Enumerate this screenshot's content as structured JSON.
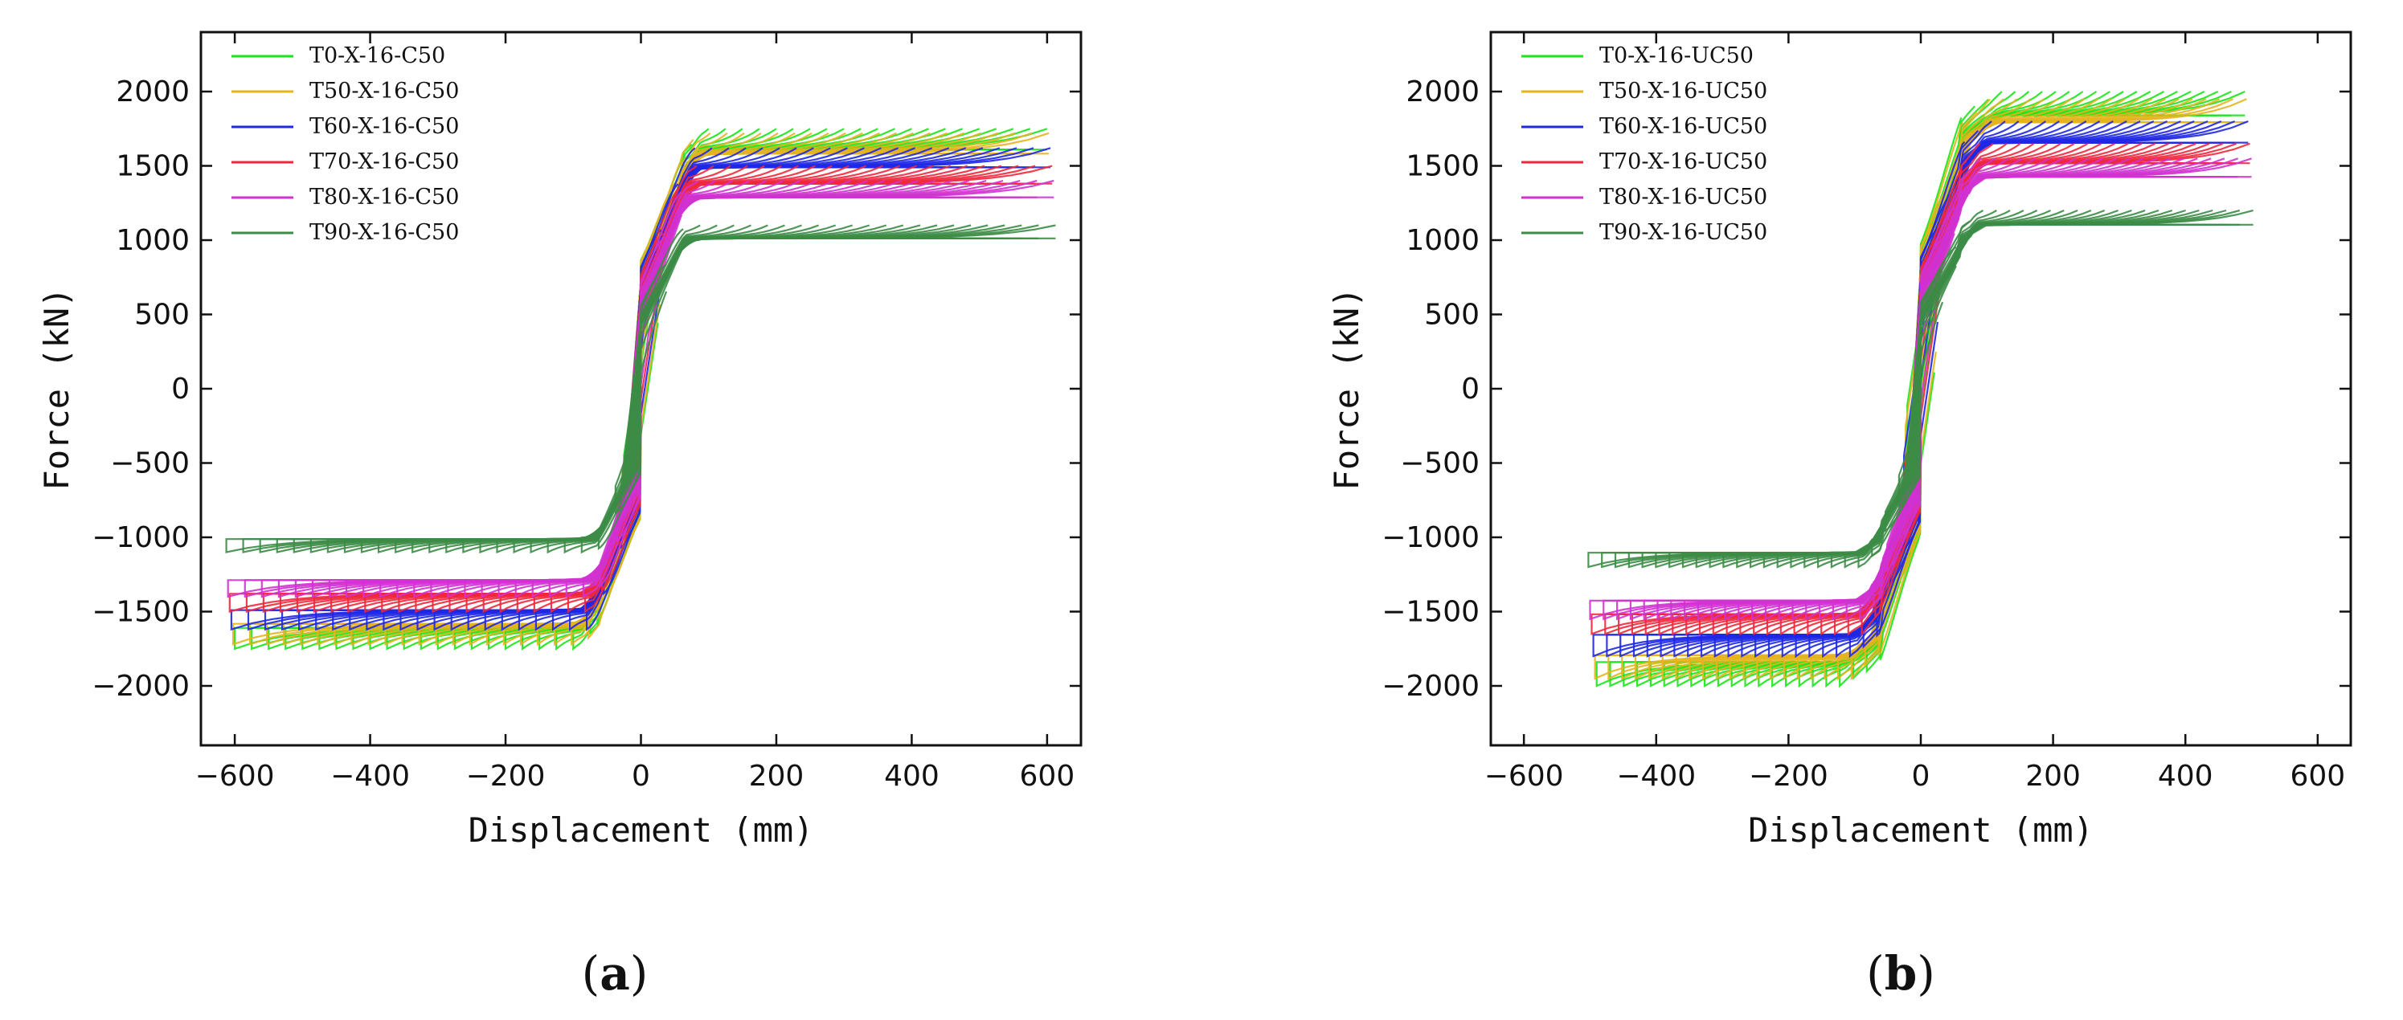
{
  "chart_data": [
    {
      "type": "line",
      "panel_label": "a",
      "xlabel": "Displacement (mm)",
      "ylabel": "Force (kN)",
      "xlim": [
        -650,
        650
      ],
      "ylim": [
        -2400,
        2400
      ],
      "xticks": [
        -600,
        -400,
        -200,
        0,
        200,
        400,
        600
      ],
      "yticks": [
        -2000,
        -1500,
        -1000,
        -500,
        0,
        500,
        1000,
        1500,
        2000
      ],
      "xtick_labels": [
        "−600",
        "−400",
        "−200",
        "0",
        "200",
        "400",
        "600"
      ],
      "ytick_labels": [
        "−2000",
        "−1500",
        "−1000",
        "−500",
        "0",
        "500",
        "1000",
        "1500",
        "2000"
      ],
      "grid": false,
      "legend_position": "top-left",
      "x_max_displacement": 600,
      "series": [
        {
          "name": "T0-X-16-C50",
          "color": "#19e619",
          "peak_force": 1750,
          "end_force": 1330
        },
        {
          "name": "T50-X-16-C50",
          "color": "#e6b41e",
          "peak_force": 1720,
          "end_force": 1250
        },
        {
          "name": "T60-X-16-C50",
          "color": "#1e28e6",
          "peak_force": 1620,
          "end_force": 1150
        },
        {
          "name": "T70-X-16-C50",
          "color": "#f0283c",
          "peak_force": 1500,
          "end_force": 1030
        },
        {
          "name": "T80-X-16-C50",
          "color": "#d232d2",
          "peak_force": 1400,
          "end_force": 960
        },
        {
          "name": "T90-X-16-C50",
          "color": "#3c8c46",
          "peak_force": 1100,
          "end_force": 900
        }
      ]
    },
    {
      "type": "line",
      "panel_label": "b",
      "xlabel": "Displacement (mm)",
      "ylabel": "Force (kN)",
      "xlim": [
        -650,
        650
      ],
      "ylim": [
        -2400,
        2400
      ],
      "xticks": [
        -600,
        -400,
        -200,
        0,
        200,
        400,
        600
      ],
      "yticks": [
        -2000,
        -1500,
        -1000,
        -500,
        0,
        500,
        1000,
        1500,
        2000
      ],
      "xtick_labels": [
        "−600",
        "−400",
        "−200",
        "0",
        "200",
        "400",
        "600"
      ],
      "ytick_labels": [
        "−2000",
        "−1500",
        "−1000",
        "−500",
        "0",
        "500",
        "1000",
        "1500",
        "2000"
      ],
      "grid": false,
      "legend_position": "top-left",
      "x_max_displacement": 490,
      "series": [
        {
          "name": "T0-X-16-UC50",
          "color": "#19e619",
          "peak_force": 2000,
          "end_force": 1580
        },
        {
          "name": "T50-X-16-UC50",
          "color": "#e6b41e",
          "peak_force": 1950,
          "end_force": 1500
        },
        {
          "name": "T60-X-16-UC50",
          "color": "#1e28e6",
          "peak_force": 1800,
          "end_force": 1400
        },
        {
          "name": "T70-X-16-UC50",
          "color": "#f0283c",
          "peak_force": 1650,
          "end_force": 1300
        },
        {
          "name": "T80-X-16-UC50",
          "color": "#d232d2",
          "peak_force": 1550,
          "end_force": 1230
        },
        {
          "name": "T90-X-16-UC50",
          "color": "#3c8c46",
          "peak_force": 1200,
          "end_force": 1150
        }
      ]
    }
  ]
}
